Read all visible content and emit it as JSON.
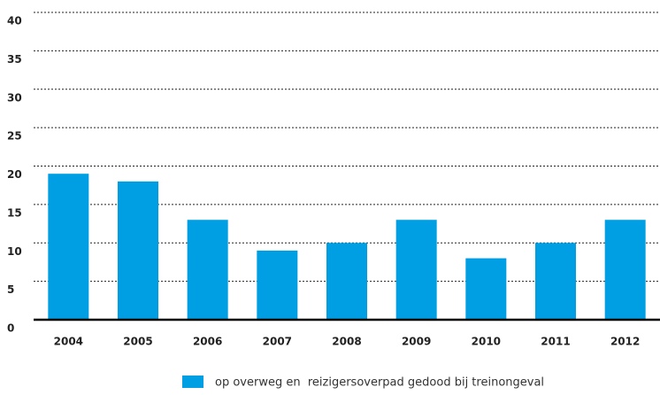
{
  "chart_data": {
    "type": "bar",
    "categories": [
      "2004",
      "2005",
      "2006",
      "2007",
      "2008",
      "2009",
      "2010",
      "2011",
      "2012"
    ],
    "series": [
      {
        "name": "op overweg en  reizigersoverpad gedood bij treinongeval",
        "color": "#009fe3",
        "values": [
          19,
          18,
          13,
          9,
          10,
          13,
          8,
          10,
          13
        ]
      }
    ],
    "ylim": [
      0,
      40
    ],
    "yticks": [
      0,
      5,
      10,
      15,
      20,
      25,
      30,
      35,
      40
    ],
    "grid": true
  }
}
